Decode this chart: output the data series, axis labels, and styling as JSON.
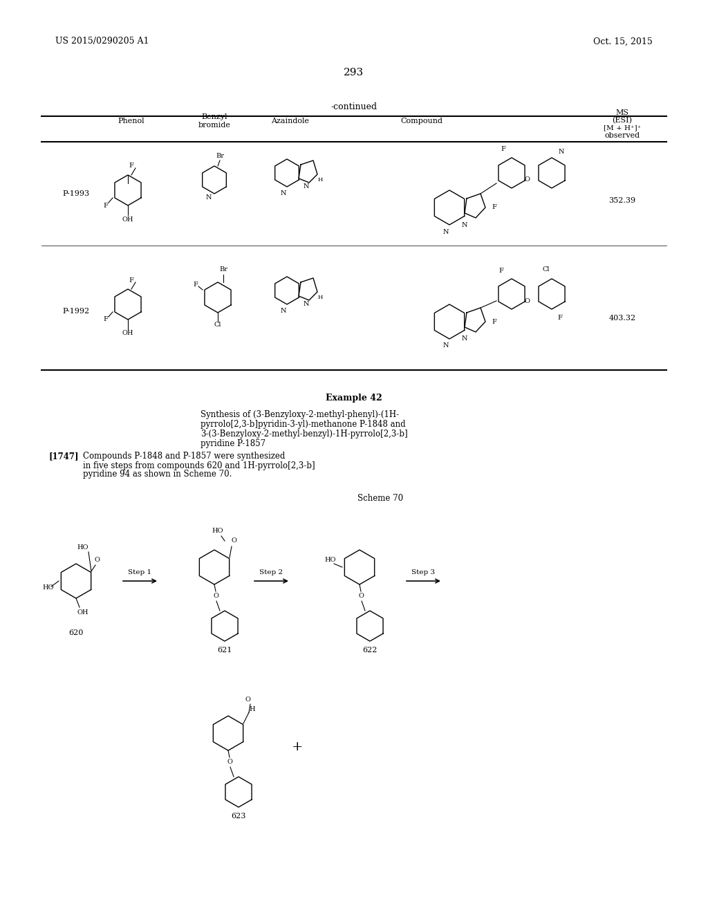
{
  "background_color": "#ffffff",
  "page_number": "293",
  "header_left": "US 2015/0290205 A1",
  "header_right": "Oct. 15, 2015",
  "continued_text": "-continued",
  "table_headers": [
    "Phenol",
    "Benzyl\nbromide",
    "Azaindole",
    "Compound",
    "MS\n(ESI)\n[M + H⁺]⁺\nobserved"
  ],
  "row1_label": "P-1993",
  "row1_ms": "352.39",
  "row2_label": "P-1992",
  "row2_ms": "403.32",
  "example_title": "Example 42",
  "example_text1": "Synthesis of (3-Benzyloxy-2-methyl-phenyl)-(1H-",
  "example_text2": "pyrrolo[2,3-b]pyridin-3-yl)-methanone P-1848 and",
  "example_text3": "3-(3-Benzyloxy-2-methyl-benzyl)-1H-pyrrolo[2,3-b]",
  "example_text4": "pyridine P-1857",
  "paragraph_marker": "[1747]",
  "paragraph_text": "Compounds P-1848 and P-1857 were synthesized in five steps from compounds 620 and 1H-pyrrolo[2,3-b]pyridine 94 as shown in Scheme 70.",
  "scheme_label": "Scheme 70",
  "compound_labels": [
    "620",
    "621",
    "622",
    "623"
  ],
  "step_labels": [
    "Step 1",
    "Step 2",
    "Step 3"
  ],
  "plus_sign": "+"
}
